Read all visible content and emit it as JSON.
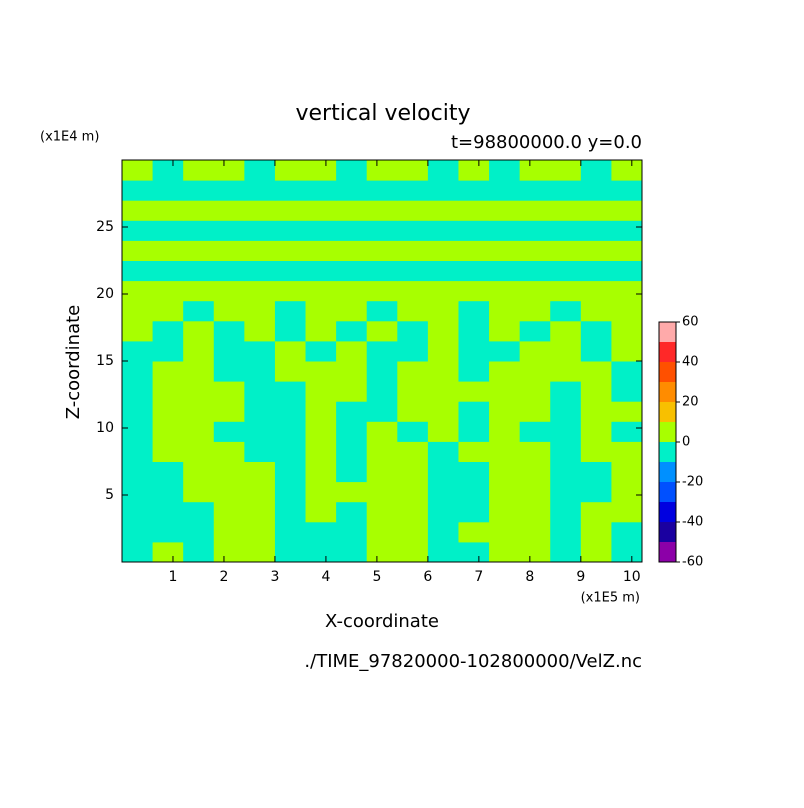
{
  "chart_data": {
    "type": "contour",
    "title": "vertical velocity",
    "subtitle": "t=98800000.0 y=0.0",
    "x_label": "X-coordinate",
    "y_label": "Z-coordinate",
    "x_unit": "(x1E5 m)",
    "y_unit": "(x1E4 m)",
    "footer": "./TIME_97820000-102800000/VelZ.nc",
    "xlim": [
      0,
      10.2
    ],
    "ylim": [
      0,
      30
    ],
    "xticks": [
      1,
      2,
      3,
      4,
      5,
      6,
      7,
      8,
      9,
      10
    ],
    "yticks": [
      5,
      10,
      15,
      20,
      25
    ],
    "colorbar": {
      "levels": [
        -60,
        -50,
        -40,
        -30,
        -20,
        -10,
        0,
        10,
        20,
        30,
        40,
        50,
        60
      ],
      "colors": [
        "#8c00a8",
        "#1a00a0",
        "#0000e0",
        "#0050ff",
        "#0090ff",
        "#00f0c8",
        "#a8ff00",
        "#f8c000",
        "#ff8c00",
        "#ff5000",
        "#ff2828",
        "#ffaaaa"
      ],
      "ticks": [
        -60,
        -40,
        -20,
        0,
        20,
        40,
        60
      ]
    },
    "z": [
      [
        -5,
        5,
        -5,
        5,
        5,
        -5,
        -5,
        -5,
        5,
        5,
        -5,
        -5,
        5,
        5,
        -5,
        5,
        -5
      ],
      [
        -5,
        -5,
        -5,
        5,
        5,
        -5,
        -5,
        -5,
        5,
        5,
        -5,
        5,
        5,
        5,
        -5,
        5,
        -5
      ],
      [
        -5,
        -5,
        -5,
        5,
        5,
        -5,
        5,
        -5,
        5,
        5,
        -5,
        -5,
        5,
        5,
        -5,
        5,
        5
      ],
      [
        -5,
        -5,
        5,
        5,
        5,
        -5,
        5,
        5,
        5,
        5,
        -5,
        -5,
        5,
        5,
        -5,
        -5,
        5
      ],
      [
        -5,
        -5,
        5,
        5,
        5,
        -5,
        5,
        -5,
        5,
        5,
        -5,
        -5,
        5,
        5,
        -5,
        -5,
        5
      ],
      [
        -5,
        5,
        5,
        5,
        -5,
        -5,
        5,
        -5,
        5,
        5,
        -5,
        5,
        5,
        5,
        -5,
        5,
        5
      ],
      [
        -5,
        5,
        5,
        -5,
        -5,
        -5,
        5,
        -5,
        5,
        -5,
        5,
        -5,
        5,
        -5,
        -5,
        5,
        -5
      ],
      [
        -5,
        5,
        5,
        5,
        -5,
        -5,
        5,
        -5,
        -5,
        5,
        5,
        -5,
        5,
        5,
        -5,
        5,
        5
      ],
      [
        -5,
        5,
        5,
        5,
        -5,
        -5,
        5,
        5,
        -5,
        5,
        5,
        5,
        5,
        5,
        -5,
        5,
        -5
      ],
      [
        -5,
        5,
        5,
        -5,
        -5,
        5,
        5,
        5,
        -5,
        5,
        5,
        -5,
        5,
        5,
        5,
        5,
        -5
      ],
      [
        -5,
        -5,
        5,
        -5,
        -5,
        5,
        -5,
        5,
        -5,
        -5,
        5,
        -5,
        -5,
        5,
        5,
        -5,
        5
      ],
      [
        5,
        -5,
        5,
        -5,
        5,
        -5,
        5,
        -5,
        5,
        -5,
        5,
        -5,
        5,
        -5,
        5,
        -5,
        5
      ],
      [
        5,
        5,
        -5,
        5,
        5,
        -5,
        5,
        5,
        -5,
        5,
        5,
        -5,
        5,
        5,
        -5,
        5,
        5
      ],
      [
        5,
        5,
        5,
        5,
        5,
        5,
        5,
        5,
        5,
        5,
        5,
        5,
        5,
        5,
        5,
        5,
        5
      ],
      [
        -5,
        -5,
        -5,
        -5,
        -5,
        -5,
        -5,
        -5,
        -5,
        -5,
        -5,
        -5,
        -5,
        -5,
        -5,
        -5,
        -5
      ],
      [
        5,
        5,
        5,
        5,
        5,
        5,
        5,
        5,
        5,
        5,
        5,
        5,
        5,
        5,
        5,
        5,
        5
      ],
      [
        -5,
        -5,
        -5,
        -5,
        -5,
        -5,
        -5,
        -5,
        -5,
        -5,
        -5,
        -5,
        -5,
        -5,
        -5,
        -5,
        -5
      ],
      [
        5,
        5,
        5,
        5,
        5,
        5,
        5,
        5,
        5,
        5,
        5,
        5,
        5,
        5,
        5,
        5,
        5
      ],
      [
        -5,
        -5,
        -5,
        -5,
        -5,
        -5,
        -5,
        -5,
        -5,
        -5,
        -5,
        -5,
        -5,
        -5,
        -5,
        -5,
        -5
      ],
      [
        5,
        -5,
        5,
        5,
        -5,
        5,
        5,
        -5,
        5,
        5,
        -5,
        5,
        -5,
        5,
        5,
        -5,
        5
      ]
    ]
  }
}
